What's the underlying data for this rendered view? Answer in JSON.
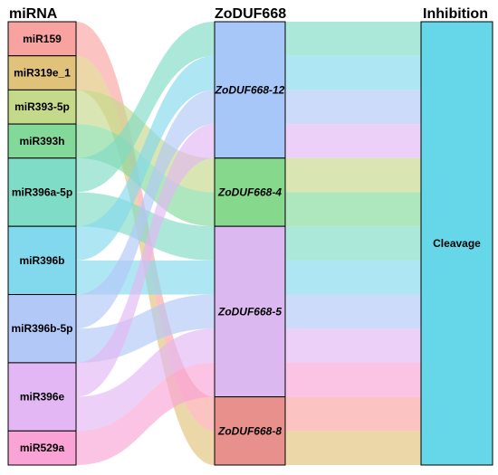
{
  "chart_data": {
    "type": "sankey",
    "axes": [
      {
        "title": "miRNA"
      },
      {
        "title": "ZoDUF668"
      },
      {
        "title": "Inhibition"
      }
    ],
    "mirna_nodes": [
      {
        "label": "miR159",
        "color": "#f9a3a0"
      },
      {
        "label": "miR319e_1",
        "color": "#e0c27a"
      },
      {
        "label": "miR393-5p",
        "color": "#c5d98a"
      },
      {
        "label": "miR393h",
        "color": "#82d99a"
      },
      {
        "label": "miR396a-5p",
        "color": "#7fdcc6"
      },
      {
        "label": "miR396b",
        "color": "#82d8ec"
      },
      {
        "label": "miR396b-5p",
        "color": "#b2c8f7"
      },
      {
        "label": "miR396e",
        "color": "#e2b7f3"
      },
      {
        "label": "miR529a",
        "color": "#f9a3d6"
      }
    ],
    "gene_nodes": [
      {
        "label": "ZoDUF668-12",
        "color": "#a6c7f8"
      },
      {
        "label": "ZoDUF668-4",
        "color": "#86d98c"
      },
      {
        "label": "ZoDUF668-5",
        "color": "#dbb8ef"
      },
      {
        "label": "ZoDUF668-8",
        "color": "#e8918c"
      }
    ],
    "inhibition_nodes": [
      {
        "label": "Cleavage",
        "color": "#66d6e9"
      }
    ],
    "links_mirna_to_gene": [
      {
        "source": "miR159",
        "target": "ZoDUF668-8",
        "value": 1
      },
      {
        "source": "miR319e_1",
        "target": "ZoDUF668-8",
        "value": 1
      },
      {
        "source": "miR393-5p",
        "target": "ZoDUF668-4",
        "value": 1
      },
      {
        "source": "miR393h",
        "target": "ZoDUF668-4",
        "value": 1
      },
      {
        "source": "miR396a-5p",
        "target": "ZoDUF668-12",
        "value": 1
      },
      {
        "source": "miR396a-5p",
        "target": "ZoDUF668-5",
        "value": 1
      },
      {
        "source": "miR396b",
        "target": "ZoDUF668-12",
        "value": 1
      },
      {
        "source": "miR396b",
        "target": "ZoDUF668-5",
        "value": 1
      },
      {
        "source": "miR396b-5p",
        "target": "ZoDUF668-12",
        "value": 1
      },
      {
        "source": "miR396b-5p",
        "target": "ZoDUF668-5",
        "value": 1
      },
      {
        "source": "miR396e",
        "target": "ZoDUF668-12",
        "value": 1
      },
      {
        "source": "miR396e",
        "target": "ZoDUF668-5",
        "value": 1
      },
      {
        "source": "miR529a",
        "target": "ZoDUF668-5",
        "value": 1
      }
    ],
    "links_gene_to_inhibition": [
      {
        "source": "ZoDUF668-12",
        "target": "Cleavage",
        "value": 4
      },
      {
        "source": "ZoDUF668-4",
        "target": "Cleavage",
        "value": 2
      },
      {
        "source": "ZoDUF668-5",
        "target": "Cleavage",
        "value": 5
      },
      {
        "source": "ZoDUF668-8",
        "target": "Cleavage",
        "value": 2
      }
    ]
  }
}
